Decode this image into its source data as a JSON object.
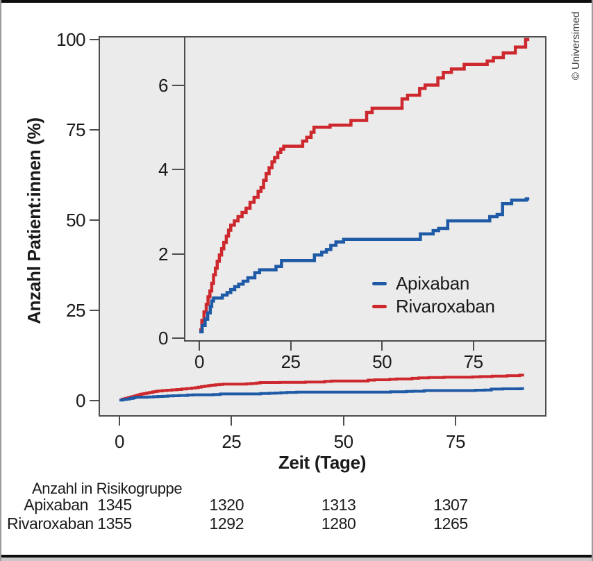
{
  "copyright": "© Universimed",
  "colors": {
    "apixaban": "#1e5aa5",
    "rivaroxaban": "#cd282d",
    "plot_bg": "#ebebeb",
    "plot_border": "#4d4d4d",
    "text": "#1a1a1a",
    "frame_black": "#0d0d0d",
    "frame_gray": "#9b9b9b"
  },
  "chart_data": {
    "type": "line",
    "step": true,
    "xlabel": "Zeit (Tage)",
    "ylabel": "Anzahl Patient:innen (%)",
    "grid": false,
    "legend_position": "inset lower right",
    "main_axis": {
      "x_ticks": [
        0,
        25,
        50,
        75
      ],
      "y_ticks": [
        0,
        25,
        50,
        75,
        100
      ],
      "xlim": [
        -4.6,
        95.3
      ],
      "ylim": [
        -4.4,
        100.9
      ]
    },
    "inset_axis": {
      "x_ticks": [
        0,
        25,
        50,
        75
      ],
      "y_ticks": [
        0,
        2,
        4,
        6
      ],
      "xlim": [
        -4.2,
        95.0
      ],
      "ylim": [
        -0.08,
        7.16
      ]
    },
    "series": [
      {
        "name": "Apixaban",
        "color_key": "apixaban",
        "points": [
          [
            0,
            0.15
          ],
          [
            0.8,
            0.3
          ],
          [
            1.6,
            0.45
          ],
          [
            2.3,
            0.6
          ],
          [
            3.0,
            0.75
          ],
          [
            3.4,
            0.88
          ],
          [
            3.9,
            0.95
          ],
          [
            6.3,
            1.02
          ],
          [
            7.6,
            1.08
          ],
          [
            8.6,
            1.15
          ],
          [
            9.7,
            1.22
          ],
          [
            10.8,
            1.28
          ],
          [
            12.0,
            1.35
          ],
          [
            13.3,
            1.43
          ],
          [
            15.2,
            1.55
          ],
          [
            16.5,
            1.62
          ],
          [
            21.0,
            1.7
          ],
          [
            22.5,
            1.84
          ],
          [
            31.5,
            1.97
          ],
          [
            33.5,
            2.04
          ],
          [
            34.8,
            2.1
          ],
          [
            36.0,
            2.2
          ],
          [
            37.4,
            2.28
          ],
          [
            39.5,
            2.34
          ],
          [
            60.5,
            2.47
          ],
          [
            64.0,
            2.55
          ],
          [
            65.5,
            2.6
          ],
          [
            68.0,
            2.78
          ],
          [
            79.5,
            2.88
          ],
          [
            81.5,
            2.93
          ],
          [
            83.0,
            3.19
          ],
          [
            85.5,
            3.27
          ],
          [
            89.5,
            3.3
          ],
          [
            90.3,
            3.3
          ]
        ]
      },
      {
        "name": "Rivaroxaban",
        "color_key": "rivaroxaban",
        "points": [
          [
            0,
            0.2
          ],
          [
            0.7,
            0.42
          ],
          [
            1.3,
            0.62
          ],
          [
            1.9,
            0.8
          ],
          [
            2.4,
            0.98
          ],
          [
            2.9,
            1.12
          ],
          [
            3.4,
            1.3
          ],
          [
            3.9,
            1.5
          ],
          [
            4.4,
            1.66
          ],
          [
            4.9,
            1.82
          ],
          [
            5.5,
            1.97
          ],
          [
            6.1,
            2.12
          ],
          [
            6.7,
            2.27
          ],
          [
            7.4,
            2.42
          ],
          [
            8.0,
            2.56
          ],
          [
            8.6,
            2.68
          ],
          [
            9.6,
            2.78
          ],
          [
            10.6,
            2.88
          ],
          [
            11.7,
            2.98
          ],
          [
            12.8,
            3.08
          ],
          [
            13.9,
            3.22
          ],
          [
            15.0,
            3.34
          ],
          [
            16.1,
            3.48
          ],
          [
            16.9,
            3.57
          ],
          [
            17.6,
            3.74
          ],
          [
            18.3,
            3.9
          ],
          [
            19.1,
            4.04
          ],
          [
            19.9,
            4.18
          ],
          [
            20.6,
            4.28
          ],
          [
            21.5,
            4.4
          ],
          [
            22.3,
            4.48
          ],
          [
            23.1,
            4.55
          ],
          [
            28.3,
            4.67
          ],
          [
            29.4,
            4.76
          ],
          [
            30.6,
            4.88
          ],
          [
            31.4,
            5.0
          ],
          [
            35.8,
            5.05
          ],
          [
            41.5,
            5.16
          ],
          [
            45.8,
            5.35
          ],
          [
            47.3,
            5.45
          ],
          [
            55.5,
            5.67
          ],
          [
            57.0,
            5.76
          ],
          [
            60.3,
            5.92
          ],
          [
            61.8,
            6.0
          ],
          [
            65.3,
            6.17
          ],
          [
            66.8,
            6.3
          ],
          [
            69.0,
            6.38
          ],
          [
            72.5,
            6.49
          ],
          [
            78.8,
            6.57
          ],
          [
            80.5,
            6.65
          ],
          [
            83.2,
            6.76
          ],
          [
            86.5,
            6.9
          ],
          [
            89.3,
            7.08
          ],
          [
            90.3,
            7.08
          ]
        ]
      }
    ]
  },
  "risk_table": {
    "title": "Anzahl in Risikogruppe",
    "time_points": [
      0,
      25,
      50,
      75
    ],
    "rows": [
      {
        "label": "Apixaban",
        "values": [
          "1345",
          "1320",
          "1313",
          "1307"
        ]
      },
      {
        "label": "Rivaroxaban",
        "values": [
          "1355",
          "1292",
          "1280",
          "1265"
        ]
      }
    ]
  }
}
